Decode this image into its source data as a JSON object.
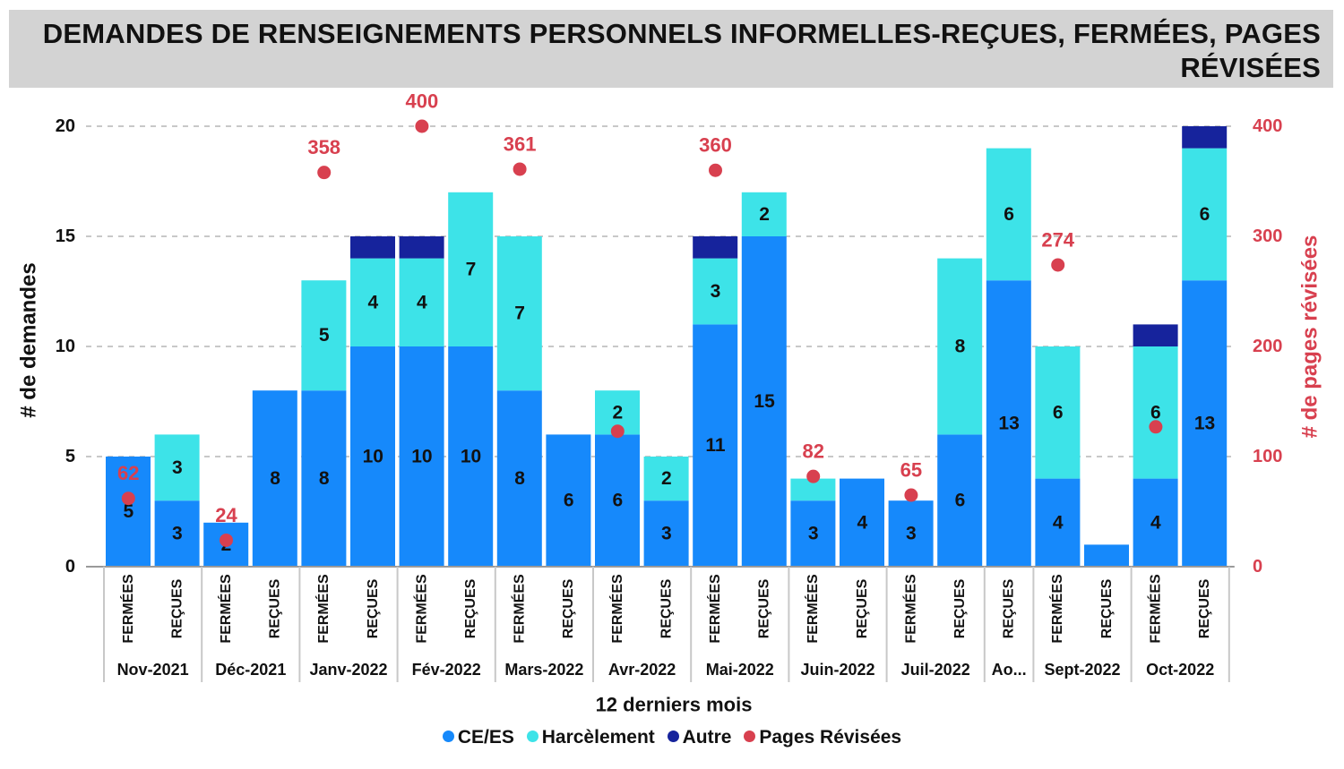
{
  "title": "DEMANDES DE RENSEIGNEMENTS PERSONNELS INFORMELLES-REÇUES, FERMÉES, PAGES RÉVISÉES",
  "colors": {
    "ce_es": "#1689fb",
    "harcelement": "#3de3e8",
    "autre": "#16239c",
    "pages": "#d8404f",
    "grid": "#c8c8c8",
    "title_bg": "#d3d3d3"
  },
  "chart_data": {
    "type": "bar",
    "stacked": true,
    "xlabel": "12 derniers mois",
    "ylabel": "# de demandes",
    "y2label": "# de pages révisées",
    "ylim": [
      0,
      20
    ],
    "y2lim": [
      0,
      400
    ],
    "yticks": [
      "0",
      "5",
      "10",
      "15",
      "20"
    ],
    "y2ticks": [
      "0",
      "100",
      "200",
      "300",
      "400"
    ],
    "categories": [
      "FERMÉES",
      "REÇUES",
      "FERMÉES",
      "REÇUES",
      "FERMÉES",
      "REÇUES",
      "FERMÉES",
      "REÇUES",
      "FERMÉES",
      "REÇUES",
      "FERMÉES",
      "REÇUES",
      "FERMÉES",
      "REÇUES",
      "FERMÉES",
      "REÇUES",
      "FERMÉES",
      "REÇUES",
      "REÇUES",
      "FERMÉES",
      "REÇUES",
      "FERMÉES",
      "REÇUES"
    ],
    "groups": [
      {
        "label": "Nov-2021",
        "count": 2
      },
      {
        "label": "Déc-2021",
        "count": 2
      },
      {
        "label": "Janv-2022",
        "count": 2
      },
      {
        "label": "Fév-2022",
        "count": 2
      },
      {
        "label": "Mars-2022",
        "count": 2
      },
      {
        "label": "Avr-2022",
        "count": 2
      },
      {
        "label": "Mai-2022",
        "count": 2
      },
      {
        "label": "Juin-2022",
        "count": 2
      },
      {
        "label": "Juil-2022",
        "count": 2
      },
      {
        "label": "Ao...",
        "count": 1
      },
      {
        "label": "Sept-2022",
        "count": 2
      },
      {
        "label": "Oct-2022",
        "count": 2
      }
    ],
    "series": [
      {
        "name": "CE/ES",
        "key": "ce_es",
        "values": [
          5,
          3,
          2,
          8,
          8,
          10,
          10,
          10,
          8,
          6,
          6,
          3,
          11,
          15,
          3,
          4,
          3,
          6,
          13,
          4,
          1,
          4,
          13
        ],
        "labels": [
          "5",
          "3",
          "2",
          "8",
          "8",
          "10",
          "10",
          "10",
          "8",
          "6",
          "6",
          "3",
          "11",
          "15",
          "3",
          "4",
          "3",
          "6",
          "13",
          "4",
          "",
          "4",
          "13"
        ]
      },
      {
        "name": "Harcèlement",
        "key": "harcelement",
        "values": [
          0,
          3,
          0,
          0,
          5,
          4,
          4,
          7,
          7,
          0,
          2,
          2,
          3,
          2,
          1,
          0,
          0,
          8,
          6,
          6,
          0,
          6,
          6
        ],
        "labels": [
          "",
          "3",
          "",
          "",
          "5",
          "4",
          "4",
          "7",
          "7",
          "",
          "2",
          "2",
          "3",
          "2",
          "",
          "",
          "",
          "8",
          "6",
          "6",
          "",
          "6",
          "6"
        ]
      },
      {
        "name": "Autre",
        "key": "autre",
        "values": [
          0,
          0,
          0,
          0,
          0,
          1,
          1,
          0,
          0,
          0,
          0,
          0,
          1,
          0,
          0,
          0,
          0,
          0,
          0,
          0,
          0,
          1,
          1
        ],
        "labels": [
          "",
          "",
          "",
          "",
          "",
          "",
          "",
          "",
          "",
          "",
          "",
          "",
          "",
          "",
          "",
          "",
          "",
          "",
          "",
          "",
          "",
          "",
          ""
        ]
      }
    ],
    "pages_revisees": {
      "name": "Pages Révisées",
      "values": [
        62,
        null,
        24,
        null,
        358,
        null,
        400,
        null,
        361,
        null,
        123,
        null,
        360,
        null,
        82,
        null,
        65,
        null,
        null,
        274,
        null,
        127,
        null
      ],
      "labels": [
        "62",
        "",
        "24",
        "",
        "358",
        "",
        "400",
        "",
        "361",
        "",
        "",
        "",
        "360",
        "",
        "82",
        "",
        "65",
        "",
        "",
        "274",
        "",
        "",
        ""
      ]
    },
    "legend": [
      "CE/ES",
      "Harcèlement",
      "Autre",
      "Pages Révisées"
    ]
  }
}
